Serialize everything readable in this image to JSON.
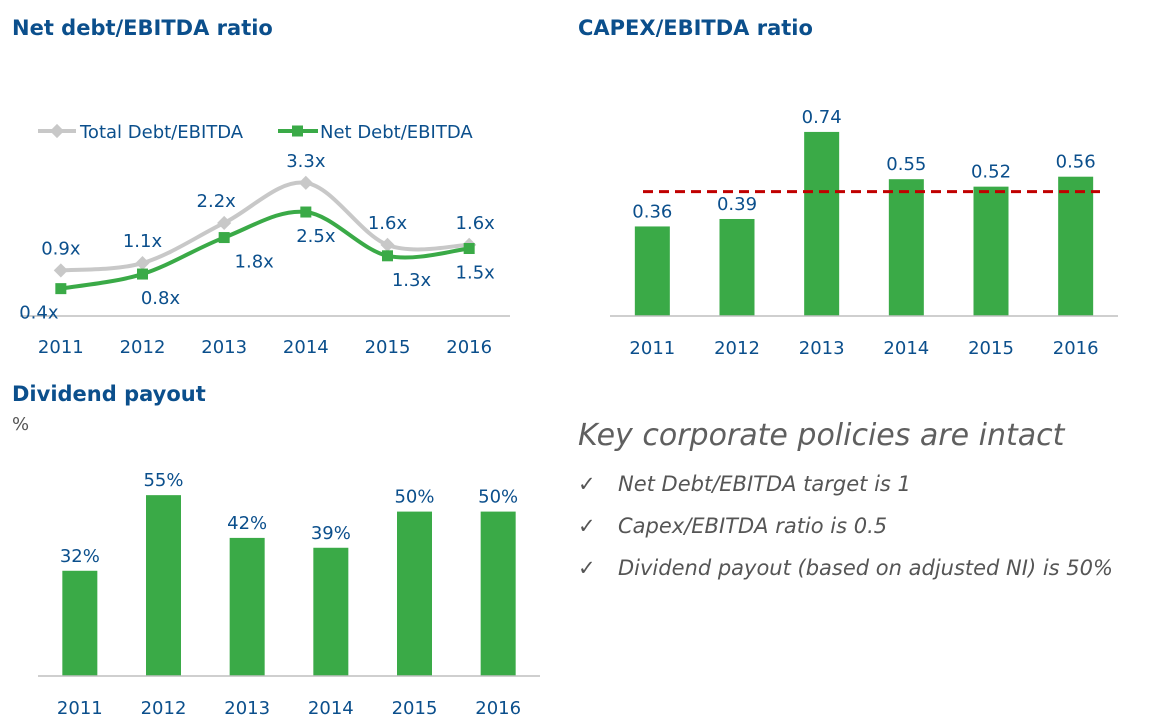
{
  "chart_data": [
    {
      "type": "line",
      "title": "Net debt/EBITDA ratio",
      "categories": [
        "2011",
        "2012",
        "2013",
        "2014",
        "2015",
        "2016"
      ],
      "series": [
        {
          "name": "Total Debt/EBITDA",
          "values": [
            0.9,
            1.1,
            2.2,
            3.3,
            1.6,
            1.6
          ],
          "labels": [
            "0.9x",
            "1.1x",
            "2.2x",
            "3.3x",
            "1.6x",
            "1.6x"
          ],
          "color": "#c8c8c8"
        },
        {
          "name": "Net Debt/EBITDA",
          "values": [
            0.4,
            0.8,
            1.8,
            2.5,
            1.3,
            1.5
          ],
          "labels": [
            "0.4x",
            "0.8x",
            "1.8x",
            "2.5x",
            "1.3x",
            "1.5x"
          ],
          "color": "#3aaa47"
        }
      ],
      "legend": "top-left",
      "ylim": [
        -0.35,
        4.2
      ]
    },
    {
      "type": "bar",
      "title": "CAPEX/EBITDA ratio",
      "categories": [
        "2011",
        "2012",
        "2013",
        "2014",
        "2015",
        "2016"
      ],
      "values": [
        0.36,
        0.39,
        0.74,
        0.55,
        0.52,
        0.56
      ],
      "labels": [
        "0.36",
        "0.39",
        "0.74",
        "0.55",
        "0.52",
        "0.56"
      ],
      "target_line": 0.5,
      "ylim": [
        0,
        0.8
      ],
      "bar_color": "#3aaa47",
      "target_color": "#c00000"
    },
    {
      "type": "bar",
      "title": "Dividend payout",
      "unit_label": "%",
      "categories": [
        "2011",
        "2012",
        "2013",
        "2014",
        "2015",
        "2016"
      ],
      "values": [
        32,
        55,
        42,
        39,
        50,
        50
      ],
      "labels": [
        "32%",
        "55%",
        "42%",
        "39%",
        "50%",
        "50%"
      ],
      "ylim": [
        0,
        59
      ],
      "bar_color": "#3aaa47"
    }
  ],
  "policies": {
    "heading": "Key corporate policies are intact",
    "check_mark": "✓",
    "items": [
      "Net Debt/EBITDA target is 1",
      "Capex/EBITDA ratio is 0.5",
      "Dividend payout (based on adjusted NI) is 50%"
    ]
  },
  "colors": {
    "axis_text": "#0b4f8c",
    "title": "#0b4f8c",
    "axis_line": "#bfbfbf"
  }
}
